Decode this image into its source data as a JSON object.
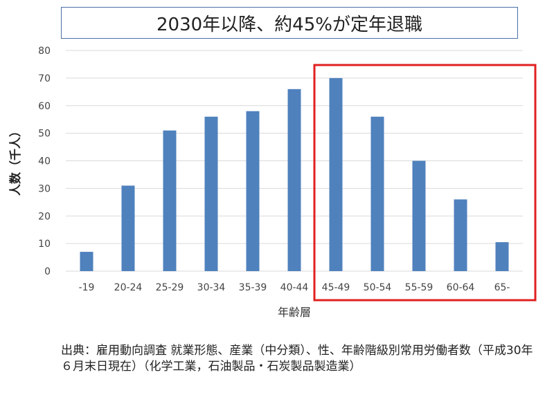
{
  "chart_data": {
    "type": "bar",
    "title": "2030年以降、約45%が定年退職",
    "xlabel": "年齢層",
    "ylabel": "人数（千人）",
    "categories": [
      "-19",
      "20-24",
      "25-29",
      "30-34",
      "35-39",
      "40-44",
      "45-49",
      "50-54",
      "55-59",
      "60-64",
      "65-"
    ],
    "values": [
      7,
      31,
      51,
      56,
      58,
      66,
      70,
      56,
      40,
      26,
      10.5
    ],
    "ylim": [
      0,
      80
    ],
    "yticks": [
      "0",
      "10",
      "20",
      "30",
      "40",
      "50",
      "60",
      "70",
      "80"
    ],
    "grid": true,
    "bar_color": "#4f81bd",
    "highlight": {
      "from_category": "45-49",
      "to_category": "65-",
      "color": "#e02020"
    }
  },
  "source": {
    "text": "出典：雇用動向調査 就業形態、産業（中分類）、性、年齢階級別常用労働者数（平成30年６月末日現在）（化学工業，石油製品・石炭製品製造業）"
  }
}
